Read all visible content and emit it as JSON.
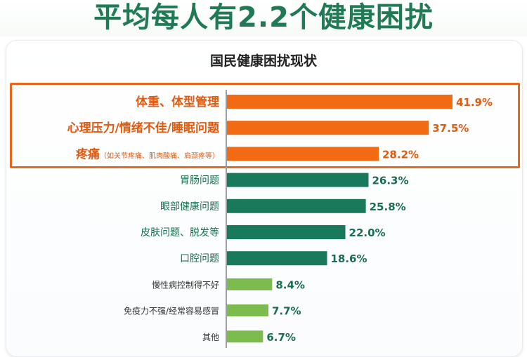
{
  "headline": "平均每人有2.2个健康困扰",
  "chart_data": {
    "type": "bar",
    "orientation": "horizontal",
    "title": "国民健康困扰现状",
    "xlabel": "",
    "ylabel": "",
    "xlim": [
      0,
      45
    ],
    "grid": false,
    "legend": "none",
    "categories": [
      "体重、体型管理",
      "心理压力/情绪不佳/睡眠问题",
      "疼痛",
      "胃肠问题",
      "眼部健康问题",
      "皮肤问题、脱发等",
      "口腔问题",
      "慢性病控制得不好",
      "免疫力不强/经常容易感冒",
      "其他"
    ],
    "category_notes": [
      "",
      "",
      "（如关节疼痛、肌肉酸痛、肩颈疼等）",
      "",
      "",
      "",
      "",
      "",
      "",
      ""
    ],
    "values": [
      41.9,
      37.5,
      28.2,
      26.3,
      25.8,
      22.0,
      18.6,
      8.4,
      7.7,
      6.7
    ],
    "value_labels": [
      "41.9%",
      "37.5%",
      "28.2%",
      "26.3%",
      "25.8%",
      "22.0%",
      "18.6%",
      "8.4%",
      "7.7%",
      "6.7%"
    ],
    "bar_colors": [
      "#f26a14",
      "#f26a14",
      "#f26a14",
      "#187a5b",
      "#187a5b",
      "#187a5b",
      "#187a5b",
      "#7cbb4d",
      "#7cbb4d",
      "#7cbb4d"
    ],
    "label_colors": [
      "#e05a10",
      "#e05a10",
      "#e05a10",
      "#1a6e50",
      "#1a6e50",
      "#1a6e50",
      "#1a6e50",
      "#333333",
      "#333333",
      "#333333"
    ],
    "value_colors": [
      "#e05a10",
      "#e05a10",
      "#e05a10",
      "#1a6e50",
      "#1a6e50",
      "#1a6e50",
      "#1a6e50",
      "#1a6e50",
      "#1a6e50",
      "#1a6e50"
    ],
    "highlight_group": [
      0,
      1,
      2
    ]
  }
}
